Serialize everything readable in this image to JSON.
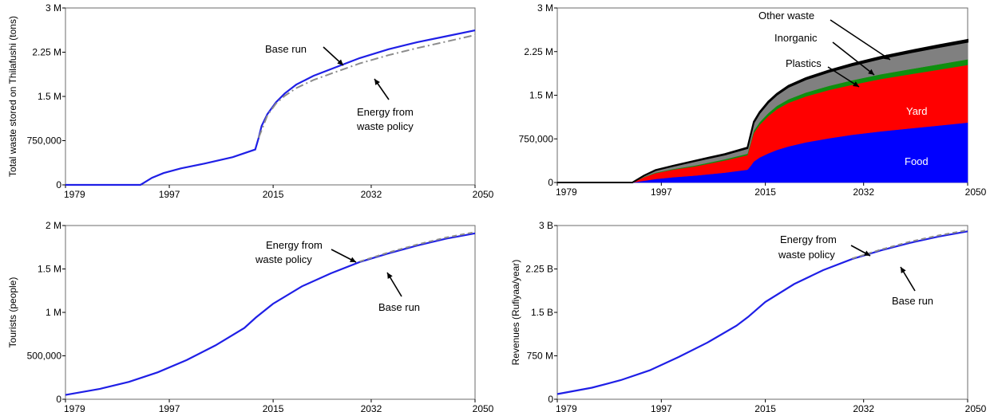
{
  "chart_data": [
    {
      "type": "line",
      "ylabel": "Total waste stored on Thilafushi (tons)",
      "xlim": [
        1979,
        2050
      ],
      "ylim": [
        0,
        3000000
      ],
      "xticks": [
        1979,
        1997,
        2015,
        2032,
        2050
      ],
      "yticks": [
        0,
        750000,
        1500000,
        2250000,
        3000000
      ],
      "yticklabels": [
        "0",
        "750,000",
        "1.5 M",
        "2.25 M",
        "3 M"
      ],
      "series": [
        {
          "name": "Base run",
          "color": "#1f1fe6",
          "style": "solid",
          "x": [
            1979,
            1992,
            1992.5,
            1994,
            1996,
            1999,
            2003,
            2008,
            2011.9,
            2012.5,
            2013,
            2014,
            2015.5,
            2017,
            2019,
            2022,
            2026,
            2030,
            2035,
            2040,
            2045,
            2050
          ],
          "y": [
            0,
            0,
            30000,
            120000,
            200000,
            280000,
            360000,
            470000,
            600000,
            800000,
            1000000,
            1200000,
            1400000,
            1550000,
            1700000,
            1850000,
            2000000,
            2150000,
            2300000,
            2420000,
            2520000,
            2620000
          ]
        },
        {
          "name": "Energy from waste policy",
          "color": "#8c8c8c",
          "style": "dashdot",
          "x": [
            2012.5,
            2014,
            2015.5,
            2017,
            2019,
            2022,
            2026,
            2030,
            2035,
            2040,
            2045,
            2050
          ],
          "y": [
            800000,
            1180000,
            1380000,
            1510000,
            1640000,
            1780000,
            1920000,
            2060000,
            2200000,
            2320000,
            2430000,
            2540000
          ]
        }
      ],
      "annotations": [
        {
          "text": "Base run"
        },
        {
          "text": "Energy from"
        },
        {
          "text": "waste policy"
        }
      ]
    },
    {
      "type": "area",
      "ylabel": "",
      "xlim": [
        1979,
        2050
      ],
      "ylim": [
        0,
        3000000
      ],
      "xticks": [
        1979,
        1997,
        2015,
        2032,
        2050
      ],
      "yticks": [
        0,
        750000,
        1500000,
        2250000,
        3000000
      ],
      "yticklabels": [
        "0",
        "750,000",
        "1.5 M",
        "2.25 M",
        "3 M"
      ],
      "x": [
        1979,
        1992,
        1994,
        1996,
        1999,
        2003,
        2008,
        2011.9,
        2012.5,
        2013,
        2014,
        2015.5,
        2017,
        2019,
        2022,
        2026,
        2030,
        2035,
        2040,
        2045,
        2050
      ],
      "series": [
        {
          "name": "Food",
          "color": "#0000ff",
          "y": [
            0,
            0,
            30000,
            60000,
            90000,
            120000,
            170000,
            220000,
            290000,
            360000,
            430000,
            500000,
            560000,
            620000,
            690000,
            760000,
            820000,
            880000,
            930000,
            980000,
            1030000
          ]
        },
        {
          "name": "Yard",
          "color": "#ff0000",
          "y": [
            0,
            0,
            60000,
            100000,
            130000,
            160000,
            210000,
            250000,
            390000,
            490000,
            560000,
            640000,
            700000,
            750000,
            790000,
            830000,
            860000,
            900000,
            930000,
            960000,
            990000
          ]
        },
        {
          "name": "Plastics",
          "color": "#0e8f0e",
          "y": [
            0,
            0,
            6000,
            10000,
            12000,
            16000,
            20000,
            25000,
            30000,
            40000,
            45000,
            52000,
            58000,
            62000,
            67000,
            72000,
            77000,
            82000,
            88000,
            93000,
            98000
          ]
        },
        {
          "name": "Inorganic",
          "color": "#808080",
          "y": [
            0,
            0,
            20000,
            40000,
            50000,
            75000,
            80000,
            95000,
            120000,
            140000,
            160000,
            180000,
            190000,
            210000,
            225000,
            240000,
            255000,
            270000,
            285000,
            295000,
            300000
          ]
        },
        {
          "name": "Other waste",
          "color": "#000000",
          "y": [
            0,
            0,
            3000,
            5000,
            6000,
            8000,
            10000,
            12000,
            14000,
            15000,
            16000,
            18000,
            20000,
            22000,
            24000,
            26000,
            28000,
            30000,
            32000,
            34000,
            36000
          ]
        }
      ],
      "labels": [
        {
          "text": "Other waste"
        },
        {
          "text": "Inorganic"
        },
        {
          "text": "Plastics"
        },
        {
          "text": "Yard"
        },
        {
          "text": "Food"
        }
      ]
    },
    {
      "type": "line",
      "ylabel": "Tourists (people)",
      "xlim": [
        1979,
        2050
      ],
      "ylim": [
        0,
        2000000
      ],
      "xticks": [
        1979,
        1997,
        2015,
        2032,
        2050
      ],
      "yticks": [
        0,
        500000,
        1000000,
        1500000,
        2000000
      ],
      "yticklabels": [
        "0",
        "500,000",
        "1 M",
        "1.5 M",
        "2 M"
      ],
      "series": [
        {
          "name": "Base run",
          "color": "#1f1fe6",
          "style": "solid",
          "x": [
            1979,
            1985,
            1990,
            1995,
            2000,
            2005,
            2010,
            2012,
            2015,
            2020,
            2025,
            2030,
            2035,
            2040,
            2045,
            2050
          ],
          "y": [
            50000,
            120000,
            200000,
            310000,
            450000,
            620000,
            820000,
            940000,
            1100000,
            1300000,
            1450000,
            1580000,
            1680000,
            1770000,
            1850000,
            1910000
          ]
        },
        {
          "name": "Energy from waste policy",
          "color": "#8c8c8c",
          "style": "dashed",
          "x": [
            2030,
            2035,
            2040,
            2045,
            2050
          ],
          "y": [
            1585000,
            1690000,
            1782000,
            1862000,
            1925000
          ]
        }
      ],
      "annotations": [
        {
          "text": "Energy from"
        },
        {
          "text": "waste policy"
        },
        {
          "text": "Base run"
        }
      ]
    },
    {
      "type": "line",
      "ylabel": "Revenues (Rufiyaa/year)",
      "xlim": [
        1979,
        2050
      ],
      "ylim": [
        0,
        3000000000
      ],
      "xticks": [
        1979,
        1997,
        2015,
        2032,
        2050
      ],
      "yticks": [
        0,
        750000000,
        1500000000,
        2250000000,
        3000000000
      ],
      "yticklabels": [
        "0",
        "750 M",
        "1.5 B",
        "2.25 B",
        "3 B"
      ],
      "series": [
        {
          "name": "Base run",
          "color": "#1f1fe6",
          "style": "solid",
          "x": [
            1979,
            1985,
            1990,
            1995,
            2000,
            2005,
            2010,
            2012,
            2015,
            2020,
            2025,
            2030,
            2035,
            2040,
            2045,
            2050
          ],
          "y": [
            90000000,
            200000000,
            330000000,
            500000000,
            730000000,
            980000000,
            1270000000,
            1420000000,
            1680000000,
            1990000000,
            2230000000,
            2420000000,
            2570000000,
            2700000000,
            2810000000,
            2900000000
          ]
        },
        {
          "name": "Energy from waste policy",
          "color": "#8c8c8c",
          "style": "dashed",
          "x": [
            2030,
            2035,
            2040,
            2045,
            2050
          ],
          "y": [
            2430000000,
            2585000000,
            2720000000,
            2830000000,
            2920000000
          ]
        }
      ],
      "annotations": [
        {
          "text": "Energy from"
        },
        {
          "text": "waste policy"
        },
        {
          "text": "Base run"
        }
      ]
    }
  ]
}
